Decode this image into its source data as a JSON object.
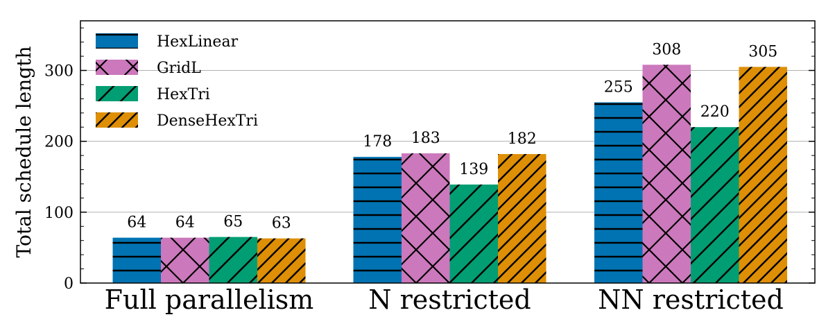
{
  "chart_data": {
    "type": "bar",
    "categories": [
      "Full parallelism",
      "N restricted",
      "NN restricted"
    ],
    "series": [
      {
        "name": "HexLinear",
        "values": [
          64,
          178,
          255
        ],
        "color": "#0173b2",
        "hatch": "horizontal"
      },
      {
        "name": "GridL",
        "values": [
          64,
          183,
          308
        ],
        "color": "#cc78bc",
        "hatch": "cross"
      },
      {
        "name": "HexTri",
        "values": [
          65,
          139,
          220
        ],
        "color": "#029e73",
        "hatch": "diagonal"
      },
      {
        "name": "DenseHexTri",
        "values": [
          63,
          182,
          305
        ],
        "color": "#de8f05",
        "hatch": "dense-diagonal"
      }
    ],
    "title": "",
    "xlabel": "",
    "ylabel": "Total schedule length",
    "ylim": [
      0,
      370
    ],
    "yticks": [
      0,
      100,
      200,
      300
    ],
    "grid": "horizontal",
    "legend": "top-left"
  }
}
